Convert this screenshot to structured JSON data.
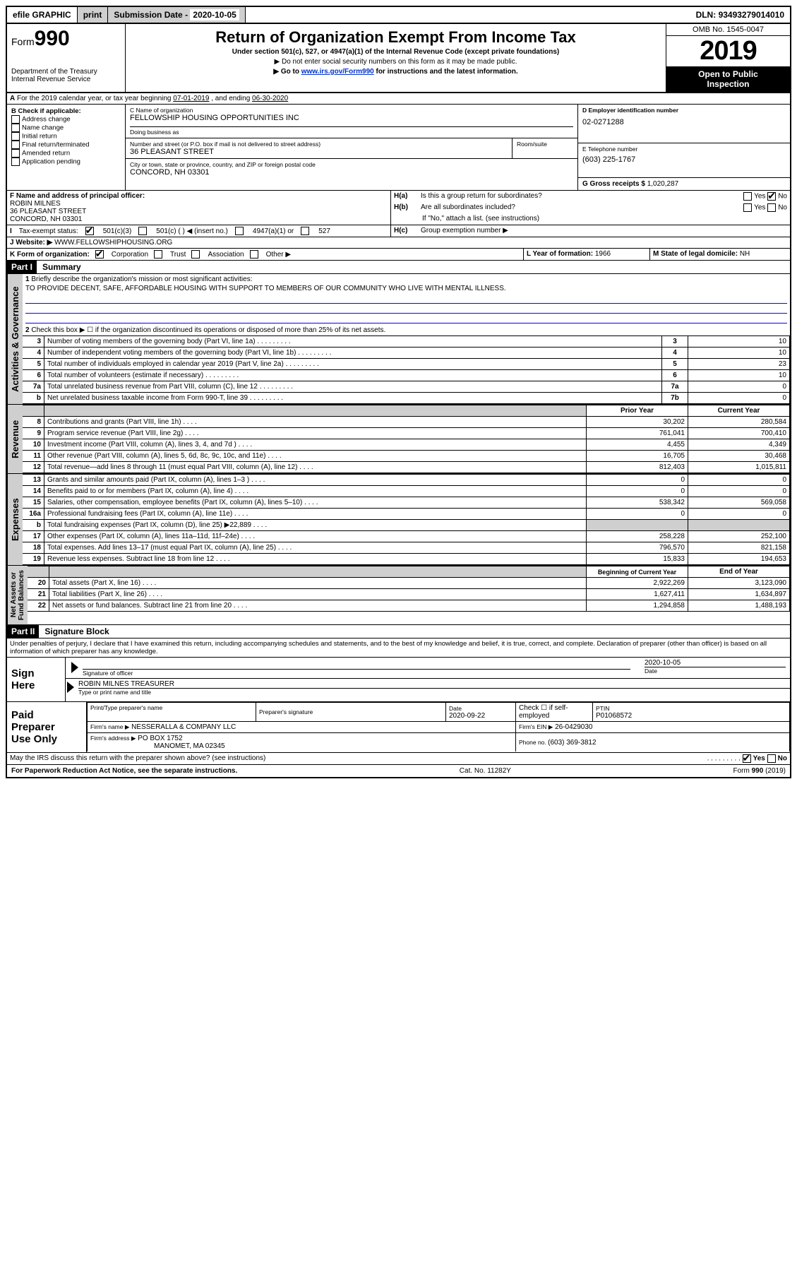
{
  "topbar": {
    "efile": "efile",
    "graphic": "GRAPHIC",
    "print": "print",
    "sub_label": "Submission Date - ",
    "sub_date": "2020-10-05",
    "dln_label": "DLN: ",
    "dln": "93493279014010"
  },
  "header": {
    "form_prefix": "Form",
    "form_num": "990",
    "dept": "Department of the Treasury\nInternal Revenue Service",
    "title": "Return of Organization Exempt From Income Tax",
    "sub1": "Under section 501(c), 527, or 4947(a)(1) of the Internal Revenue Code (except private foundations)",
    "sub2": "▶ Do not enter social security numbers on this form as it may be made public.",
    "sub3_pre": "▶ Go to ",
    "sub3_link": "www.irs.gov/Form990",
    "sub3_post": " for instructions and the latest information.",
    "omb": "OMB No. 1545-0047",
    "year": "2019",
    "open": "Open to Public\nInspection"
  },
  "period": {
    "a": "For the 2019 calendar year, or tax year beginning ",
    "beg": "07-01-2019",
    "mid": " , and ending ",
    "end": "06-30-2020"
  },
  "boxB": {
    "title": "B Check if applicable:",
    "opts": [
      "Address change",
      "Name change",
      "Initial return",
      "Final return/terminated",
      "Amended return",
      "Application pending"
    ]
  },
  "boxC": {
    "name_lbl": "C Name of organization",
    "name": "FELLOWSHIP HOUSING OPPORTUNITIES INC",
    "dba_lbl": "Doing business as",
    "addr_lbl": "Number and street (or P.O. box if mail is not delivered to street address)",
    "room_lbl": "Room/suite",
    "addr": "36 PLEASANT STREET",
    "city_lbl": "City or town, state or province, country, and ZIP or foreign postal code",
    "city": "CONCORD, NH  03301"
  },
  "boxD": {
    "lbl": "D Employer identification number",
    "val": "02-0271288"
  },
  "boxE": {
    "lbl": "E Telephone number",
    "val": "(603) 225-1767"
  },
  "boxG": {
    "lbl": "G Gross receipts $ ",
    "val": "1,020,287"
  },
  "boxF": {
    "lbl": "F Name and address of principal officer:",
    "name": "ROBIN MILNES",
    "addr1": "36 PLEASANT STREET",
    "addr2": "CONCORD, NH  03301"
  },
  "boxH": {
    "a_lbl": "H(a)",
    "a_txt": "Is this a group return for subordinates?",
    "b_lbl": "H(b)",
    "b_txt": "Are all subordinates included?",
    "b_note": "If \"No,\" attach a list. (see instructions)",
    "c_lbl": "H(c)",
    "c_txt": "Group exemption number ▶",
    "yes": "Yes",
    "no": "No"
  },
  "boxI": {
    "lbl": "Tax-exempt status:",
    "o1": "501(c)(3)",
    "o2": "501(c) (   ) ◀ (insert no.)",
    "o3": "4947(a)(1) or",
    "o4": "527"
  },
  "boxJ": {
    "lbl": "Website: ▶",
    "val": "WWW.FELLOWSHIPHOUSING.ORG"
  },
  "boxK": {
    "lbl": "K Form of organization:",
    "o1": "Corporation",
    "o2": "Trust",
    "o3": "Association",
    "o4": "Other ▶"
  },
  "boxL": {
    "lbl": "L Year of formation: ",
    "val": "1966"
  },
  "boxM": {
    "lbl": "M State of legal domicile: ",
    "val": "NH"
  },
  "part1": {
    "hdr": "Part I",
    "title": "Summary",
    "l1_lbl": "1",
    "l1": "Briefly describe the organization's mission or most significant activities:",
    "mission": "TO PROVIDE DECENT, SAFE, AFFORDABLE HOUSING WITH SUPPORT TO MEMBERS OF OUR COMMUNITY WHO LIVE WITH MENTAL ILLNESS.",
    "l2_lbl": "2",
    "l2": "Check this box ▶ ☐  if the organization discontinued its operations or disposed of more than 25% of its net assets.",
    "rows_top": [
      {
        "n": "3",
        "t": "Number of voting members of the governing body (Part VI, line 1a)",
        "box": "3",
        "v": "10"
      },
      {
        "n": "4",
        "t": "Number of independent voting members of the governing body (Part VI, line 1b)",
        "box": "4",
        "v": "10"
      },
      {
        "n": "5",
        "t": "Total number of individuals employed in calendar year 2019 (Part V, line 2a)",
        "box": "5",
        "v": "23"
      },
      {
        "n": "6",
        "t": "Total number of volunteers (estimate if necessary)",
        "box": "6",
        "v": "10"
      },
      {
        "n": "7a",
        "t": "Total unrelated business revenue from Part VIII, column (C), line 12",
        "box": "7a",
        "v": "0"
      },
      {
        "n": "b",
        "t": "Net unrelated business taxable income from Form 990-T, line 39",
        "box": "7b",
        "v": "0"
      }
    ],
    "col_prior": "Prior Year",
    "col_curr": "Current Year",
    "revenue": [
      {
        "n": "8",
        "t": "Contributions and grants (Part VIII, line 1h)",
        "p": "30,202",
        "c": "280,584"
      },
      {
        "n": "9",
        "t": "Program service revenue (Part VIII, line 2g)",
        "p": "761,041",
        "c": "700,410"
      },
      {
        "n": "10",
        "t": "Investment income (Part VIII, column (A), lines 3, 4, and 7d )",
        "p": "4,455",
        "c": "4,349"
      },
      {
        "n": "11",
        "t": "Other revenue (Part VIII, column (A), lines 5, 6d, 8c, 9c, 10c, and 11e)",
        "p": "16,705",
        "c": "30,468"
      },
      {
        "n": "12",
        "t": "Total revenue—add lines 8 through 11 (must equal Part VIII, column (A), line 12)",
        "p": "812,403",
        "c": "1,015,811"
      }
    ],
    "expenses": [
      {
        "n": "13",
        "t": "Grants and similar amounts paid (Part IX, column (A), lines 1–3 )",
        "p": "0",
        "c": "0"
      },
      {
        "n": "14",
        "t": "Benefits paid to or for members (Part IX, column (A), line 4)",
        "p": "0",
        "c": "0"
      },
      {
        "n": "15",
        "t": "Salaries, other compensation, employee benefits (Part IX, column (A), lines 5–10)",
        "p": "538,342",
        "c": "569,058"
      },
      {
        "n": "16a",
        "t": "Professional fundraising fees (Part IX, column (A), line 11e)",
        "p": "0",
        "c": "0"
      },
      {
        "n": "b",
        "t": "Total fundraising expenses (Part IX, column (D), line 25) ▶22,889",
        "p": "",
        "c": "",
        "shade": true
      },
      {
        "n": "17",
        "t": "Other expenses (Part IX, column (A), lines 11a–11d, 11f–24e)",
        "p": "258,228",
        "c": "252,100"
      },
      {
        "n": "18",
        "t": "Total expenses. Add lines 13–17 (must equal Part IX, column (A), line 25)",
        "p": "796,570",
        "c": "821,158"
      },
      {
        "n": "19",
        "t": "Revenue less expenses. Subtract line 18 from line 12",
        "p": "15,833",
        "c": "194,653"
      }
    ],
    "col_beg": "Beginning of Current Year",
    "col_end": "End of Year",
    "netassets": [
      {
        "n": "20",
        "t": "Total assets (Part X, line 16)",
        "p": "2,922,269",
        "c": "3,123,090"
      },
      {
        "n": "21",
        "t": "Total liabilities (Part X, line 26)",
        "p": "1,627,411",
        "c": "1,634,897"
      },
      {
        "n": "22",
        "t": "Net assets or fund balances. Subtract line 21 from line 20",
        "p": "1,294,858",
        "c": "1,488,193"
      }
    ]
  },
  "vtabs": {
    "ag": "Activities & Governance",
    "rev": "Revenue",
    "exp": "Expenses",
    "na": "Net Assets or\nFund Balances"
  },
  "part2": {
    "hdr": "Part II",
    "title": "Signature Block",
    "decl": "Under penalties of perjury, I declare that I have examined this return, including accompanying schedules and statements, and to the best of my knowledge and belief, it is true, correct, and complete. Declaration of preparer (other than officer) is based on all information of which preparer has any knowledge."
  },
  "sign": {
    "here": "Sign\nHere",
    "sig_lbl": "Signature of officer",
    "date": "2020-10-05",
    "date_lbl": "Date",
    "name": "ROBIN MILNES TREASURER",
    "name_lbl": "Type or print name and title"
  },
  "paid": {
    "lbl": "Paid\nPreparer\nUse Only",
    "h1": "Print/Type preparer's name",
    "h2": "Preparer's signature",
    "h3": "Date",
    "h3v": "2020-09-22",
    "h4": "Check ☐ if self-employed",
    "h5": "PTIN",
    "h5v": "P01068572",
    "firm_lbl": "Firm's name    ▶",
    "firm": "NESSERALLA & COMPANY LLC",
    "ein_lbl": "Firm's EIN ▶",
    "ein": "26-0429030",
    "addr_lbl": "Firm's address ▶",
    "addr1": "PO BOX 1752",
    "addr2": "MANOMET, MA  02345",
    "phone_lbl": "Phone no. ",
    "phone": "(603) 369-3812"
  },
  "discuss": {
    "q": "May the IRS discuss this return with the preparer shown above? (see instructions)",
    "yes": "Yes",
    "no": "No"
  },
  "footer": {
    "pra": "For Paperwork Reduction Act Notice, see the separate instructions.",
    "cat": "Cat. No. 11282Y",
    "form": "Form 990 (2019)"
  }
}
